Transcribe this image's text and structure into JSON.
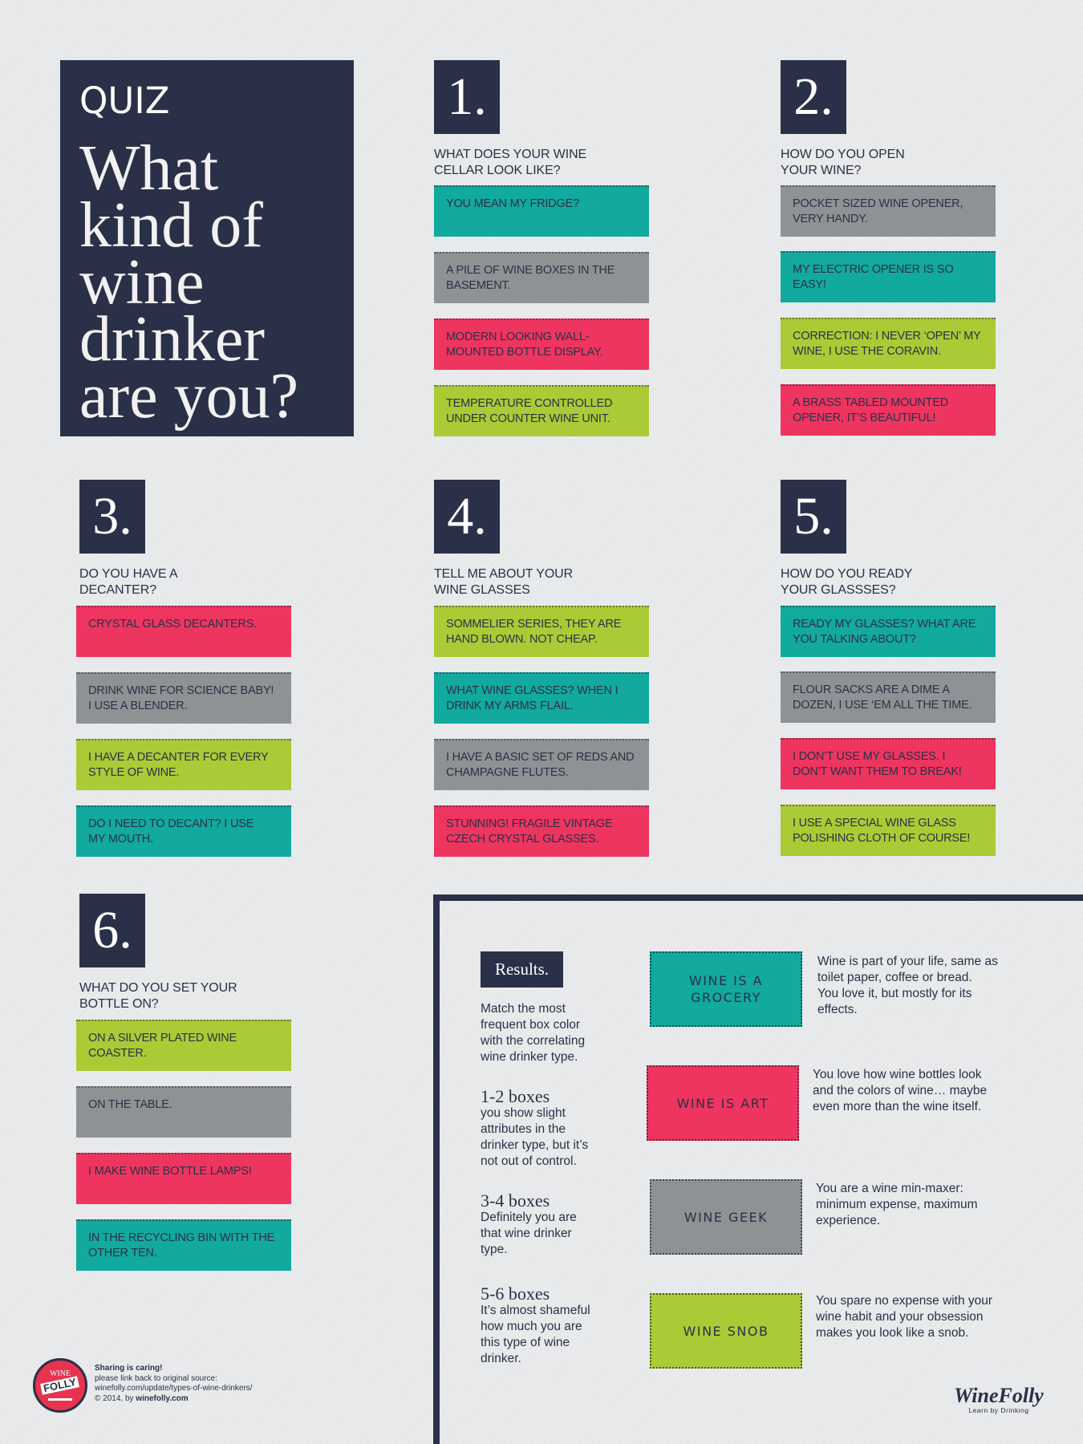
{
  "colors": {
    "navy": "#2a3047",
    "teal": "#12a99e",
    "gray": "#8f9294",
    "pink": "#ee3560",
    "lime": "#aacb35",
    "background": "#e9eaec"
  },
  "title_panel": {
    "quiz": "QUIZ",
    "headline_lines": [
      "What",
      "kind of",
      "wine",
      "drinker",
      "are you?"
    ]
  },
  "questions": [
    {
      "number": "1.",
      "lines": [
        "WHAT DOES YOUR WINE",
        "CELLAR LOOK LIKE?"
      ],
      "answers": [
        {
          "color": "teal",
          "lines": [
            "YOU MEAN MY FRIDGE?"
          ]
        },
        {
          "color": "gray",
          "lines": [
            "A PILE OF WINE BOXES IN THE",
            "BASEMENT."
          ]
        },
        {
          "color": "pink",
          "lines": [
            "MODERN LOOKING WALL-",
            "MOUNTED BOTTLE DISPLAY."
          ]
        },
        {
          "color": "lime",
          "lines": [
            "TEMPERATURE CONTROLLED",
            "UNDER COUNTER WINE UNIT."
          ]
        }
      ]
    },
    {
      "number": "2.",
      "lines": [
        "HOW DO YOU OPEN",
        "YOUR WINE?"
      ],
      "answers": [
        {
          "color": "gray",
          "lines": [
            "POCKET SIZED WINE OPENER,",
            "VERY HANDY."
          ]
        },
        {
          "color": "teal",
          "lines": [
            "MY ELECTRIC OPENER IS SO",
            "EASY!"
          ]
        },
        {
          "color": "lime",
          "lines": [
            "CORRECTION: I NEVER ‘OPEN’ MY",
            "WINE, I USE THE CORAVIN."
          ]
        },
        {
          "color": "pink",
          "lines": [
            "A BRASS TABLED MOUNTED",
            "OPENER, IT’S BEAUTIFUL!"
          ]
        }
      ]
    },
    {
      "number": "3.",
      "lines": [
        "DO YOU HAVE A",
        "DECANTER?"
      ],
      "answers": [
        {
          "color": "pink",
          "lines": [
            "CRYSTAL GLASS DECANTERS."
          ]
        },
        {
          "color": "gray",
          "lines": [
            "DRINK WINE FOR SCIENCE BABY!",
            "I USE A BLENDER."
          ]
        },
        {
          "color": "lime",
          "lines": [
            "I HAVE A DECANTER FOR EVERY",
            "STYLE OF WINE."
          ]
        },
        {
          "color": "teal",
          "lines": [
            "DO I NEED TO DECANT?  I USE",
            "MY MOUTH."
          ]
        }
      ]
    },
    {
      "number": "4.",
      "lines": [
        "TELL ME ABOUT YOUR",
        "WINE GLASSES"
      ],
      "answers": [
        {
          "color": "lime",
          "lines": [
            "SOMMELIER SERIES, THEY ARE",
            "HAND BLOWN.  NOT CHEAP."
          ]
        },
        {
          "color": "teal",
          "lines": [
            "WHAT WINE GLASSES?  WHEN I",
            "DRINK MY ARMS FLAIL."
          ]
        },
        {
          "color": "gray",
          "lines": [
            "I HAVE A BASIC SET OF REDS AND",
            "CHAMPAGNE FLUTES."
          ]
        },
        {
          "color": "pink",
          "lines": [
            "STUNNING! FRAGILE VINTAGE",
            "CZECH CRYSTAL GLASSES."
          ]
        }
      ]
    },
    {
      "number": "5.",
      "lines": [
        "HOW DO YOU READY",
        "YOUR GLASSSES?"
      ],
      "answers": [
        {
          "color": "teal",
          "lines": [
            "READY MY GLASSES? WHAT ARE",
            "YOU TALKING ABOUT?"
          ]
        },
        {
          "color": "gray",
          "lines": [
            "FLOUR SACKS ARE A DIME A",
            "DOZEN, I USE ‘EM ALL THE TIME."
          ]
        },
        {
          "color": "pink",
          "lines": [
            "I DON’T USE MY GLASSES.  I",
            "DON’T WANT THEM TO BREAK!"
          ]
        },
        {
          "color": "lime",
          "lines": [
            "I USE A SPECIAL WINE GLASS",
            "POLISHING CLOTH OF COURSE!"
          ]
        }
      ]
    },
    {
      "number": "6.",
      "lines": [
        "WHAT DO YOU SET YOUR",
        "BOTTLE ON?"
      ],
      "answers": [
        {
          "color": "lime",
          "lines": [
            "ON A SILVER PLATED WINE",
            "COASTER."
          ]
        },
        {
          "color": "gray",
          "lines": [
            "ON THE TABLE."
          ]
        },
        {
          "color": "pink",
          "lines": [
            "I MAKE WINE BOTTLE LAMPS!"
          ]
        },
        {
          "color": "teal",
          "lines": [
            "IN THE RECYCLING BIN WITH THE",
            "OTHER TEN."
          ]
        }
      ]
    }
  ],
  "results": {
    "label": "Results.",
    "intro_lines": [
      "Match the most",
      "frequent  box color",
      "with the correlating",
      "wine drinker type."
    ],
    "levels": [
      {
        "heading": "1-2 boxes",
        "lines": [
          "you show slight",
          "attributes in the",
          "drinker type, but it’s",
          "not out of control."
        ]
      },
      {
        "heading": "3-4 boxes",
        "lines": [
          "Definitely you are",
          "that wine drinker",
          "type."
        ]
      },
      {
        "heading": "5-6 boxes",
        "lines": [
          "It’s almost shameful",
          "how much you are",
          "this type of wine",
          "drinker."
        ]
      }
    ],
    "types": [
      {
        "color": "teal",
        "label_lines": [
          "WINE IS A",
          "GROCERY"
        ],
        "desc_lines": [
          "Wine is part of your life, same as",
          "toilet paper, coffee or bread.",
          "You love it, but mostly for its",
          "effects."
        ]
      },
      {
        "color": "pink",
        "label_lines": [
          "WINE IS ART"
        ],
        "desc_lines": [
          "You love how wine bottles look",
          "and the colors of wine… maybe",
          "even more than the wine itself."
        ]
      },
      {
        "color": "gray",
        "label_lines": [
          "WINE GEEK"
        ],
        "desc_lines": [
          "You are a wine min-maxer:",
          "minimum expense, maximum",
          "experience."
        ]
      },
      {
        "color": "lime",
        "label_lines": [
          "WINE SNOB"
        ],
        "desc_lines": [
          "You spare no expense with your",
          "wine habit and your obsession",
          "makes you look like a snob."
        ]
      }
    ]
  },
  "footer": {
    "logo_top": "WINE",
    "logo_main": "FOLLY",
    "sharing": "Sharing is caring!",
    "line2": "please link back to original source:",
    "url": "winefolly.com/update/types-of-wine-drinkers/",
    "copyright_prefix": "© 2014, by ",
    "copyright_site": "winefolly.com",
    "brand": "WineFolly",
    "tagline": "Learn by Drinking"
  }
}
